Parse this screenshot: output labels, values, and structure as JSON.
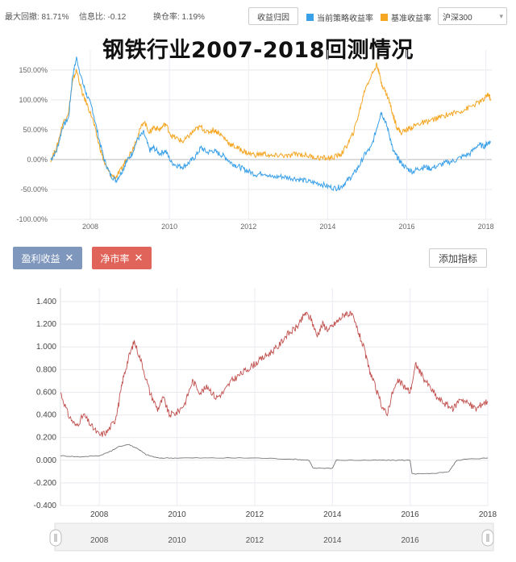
{
  "header": {
    "max_drawdown": "最大回撤: 81.71%",
    "info_ratio": "信息比: -0.12",
    "turnover": "换仓率: 1.19%",
    "attribution_button": "收益归因",
    "legend_strategy": "当前策略收益率",
    "legend_benchmark": "基准收益率",
    "benchmark_select": "沪深300",
    "colors": {
      "strategy": "#3aa0e8",
      "benchmark": "#f5a623",
      "pb_line": "#c0504d",
      "profit_line": "#777777"
    }
  },
  "title": "钢铁行业2007-2018回测情况",
  "controls": {
    "tag_profit": "盈利收益",
    "tag_pb": "净市率",
    "tag_close": "✕",
    "add_indicator": "添加指标",
    "tag_profit_color": "#7f97bd",
    "tag_pb_color": "#e0645a"
  },
  "chart_data": [
    {
      "type": "line",
      "x_ticks": [
        "2008",
        "2010",
        "2012",
        "2014",
        "2016",
        "2018"
      ],
      "y_ticks": [
        "150.00%",
        "100.00%",
        "50.00%",
        "0.00%",
        "-50.00%",
        "-100.00%"
      ],
      "xlim": [
        2007.0,
        2018.15
      ],
      "ylim": [
        -100,
        170
      ],
      "grid": true,
      "series": [
        {
          "name": "当前策略收益率",
          "x": [
            2007.0,
            2007.15,
            2007.3,
            2007.45,
            2007.55,
            2007.65,
            2007.8,
            2007.9,
            2008.05,
            2008.2,
            2008.35,
            2008.5,
            2008.65,
            2008.8,
            2008.9,
            2009.05,
            2009.2,
            2009.35,
            2009.5,
            2009.6,
            2009.75,
            2009.9,
            2010.05,
            2010.2,
            2010.35,
            2010.5,
            2010.65,
            2010.8,
            2010.95,
            2011.1,
            2011.25,
            2011.4,
            2011.55,
            2011.7,
            2011.85,
            2012.0,
            2012.2,
            2012.4,
            2012.6,
            2012.8,
            2013.0,
            2013.2,
            2013.4,
            2013.6,
            2013.8,
            2014.0,
            2014.2,
            2014.35,
            2014.5,
            2014.65,
            2014.8,
            2014.95,
            2015.1,
            2015.25,
            2015.35,
            2015.45,
            2015.55,
            2015.65,
            2015.75,
            2015.85,
            2016.0,
            2016.15,
            2016.3,
            2016.45,
            2016.6,
            2016.8,
            2017.0,
            2017.2,
            2017.4,
            2017.6,
            2017.8,
            2017.95,
            2018.05,
            2018.12
          ],
          "values": [
            0,
            15,
            55,
            70,
            140,
            170,
            130,
            110,
            85,
            40,
            0,
            -25,
            -35,
            -20,
            -5,
            10,
            35,
            45,
            15,
            20,
            10,
            15,
            -5,
            -10,
            -12,
            -5,
            5,
            20,
            12,
            15,
            10,
            5,
            -5,
            -10,
            -15,
            -20,
            -25,
            -22,
            -30,
            -28,
            -30,
            -32,
            -35,
            -38,
            -40,
            -45,
            -48,
            -45,
            -35,
            -25,
            -10,
            10,
            20,
            55,
            80,
            65,
            45,
            15,
            5,
            -5,
            -15,
            -20,
            -15,
            -12,
            -15,
            -10,
            -5,
            -2,
            5,
            10,
            25,
            22,
            28,
            30
          ]
        },
        {
          "name": "基准收益率",
          "x": [
            2007.0,
            2007.15,
            2007.3,
            2007.45,
            2007.55,
            2007.65,
            2007.8,
            2007.9,
            2008.05,
            2008.2,
            2008.35,
            2008.5,
            2008.65,
            2008.8,
            2008.9,
            2009.05,
            2009.2,
            2009.35,
            2009.5,
            2009.6,
            2009.75,
            2009.9,
            2010.05,
            2010.2,
            2010.35,
            2010.5,
            2010.65,
            2010.8,
            2010.95,
            2011.1,
            2011.25,
            2011.4,
            2011.55,
            2011.7,
            2011.85,
            2012.0,
            2012.2,
            2012.4,
            2012.6,
            2012.8,
            2013.0,
            2013.2,
            2013.4,
            2013.6,
            2013.8,
            2014.0,
            2014.2,
            2014.35,
            2014.5,
            2014.65,
            2014.8,
            2014.95,
            2015.1,
            2015.25,
            2015.35,
            2015.45,
            2015.55,
            2015.65,
            2015.75,
            2015.85,
            2016.0,
            2016.15,
            2016.3,
            2016.45,
            2016.6,
            2016.8,
            2017.0,
            2017.2,
            2017.4,
            2017.6,
            2017.8,
            2017.95,
            2018.05,
            2018.12
          ],
          "values": [
            0,
            20,
            60,
            80,
            130,
            150,
            110,
            95,
            70,
            30,
            -5,
            -25,
            -30,
            -15,
            0,
            15,
            40,
            65,
            45,
            55,
            50,
            60,
            40,
            35,
            30,
            40,
            50,
            55,
            45,
            50,
            45,
            35,
            25,
            20,
            15,
            10,
            8,
            10,
            5,
            8,
            5,
            10,
            8,
            5,
            3,
            2,
            5,
            10,
            25,
            45,
            80,
            120,
            140,
            160,
            130,
            115,
            100,
            75,
            55,
            45,
            50,
            55,
            60,
            62,
            65,
            70,
            75,
            78,
            82,
            88,
            95,
            100,
            110,
            102
          ]
        }
      ]
    },
    {
      "type": "line",
      "x_ticks": [
        "2008",
        "2010",
        "2012",
        "2014",
        "2016",
        "2018"
      ],
      "y_ticks": [
        "1.400",
        "1.200",
        "1.000",
        "0.800",
        "0.600",
        "0.400",
        "0.200",
        "0.000",
        "-0.200",
        "-0.400"
      ],
      "xlim": [
        2007.0,
        2018.0
      ],
      "ylim": [
        -0.4,
        1.45
      ],
      "grid": true,
      "series": [
        {
          "name": "净市率",
          "x": [
            2007.0,
            2007.2,
            2007.4,
            2007.6,
            2007.8,
            2008.0,
            2008.2,
            2008.4,
            2008.5,
            2008.6,
            2008.75,
            2008.9,
            2009.1,
            2009.3,
            2009.5,
            2009.65,
            2009.8,
            2010.0,
            2010.2,
            2010.4,
            2010.6,
            2010.8,
            2011.0,
            2011.2,
            2011.4,
            2011.6,
            2011.8,
            2012.0,
            2012.2,
            2012.4,
            2012.6,
            2012.8,
            2013.0,
            2013.15,
            2013.3,
            2013.45,
            2013.6,
            2013.75,
            2013.9,
            2014.05,
            2014.2,
            2014.35,
            2014.5,
            2014.65,
            2014.8,
            2014.95,
            2015.1,
            2015.25,
            2015.4,
            2015.55,
            2015.7,
            2015.85,
            2016.0,
            2016.15,
            2016.3,
            2016.5,
            2016.7,
            2016.9,
            2017.1,
            2017.3,
            2017.5,
            2017.7,
            2017.85,
            2018.0
          ],
          "values": [
            0.6,
            0.4,
            0.3,
            0.4,
            0.3,
            0.22,
            0.25,
            0.35,
            0.5,
            0.7,
            0.9,
            1.05,
            0.85,
            0.6,
            0.45,
            0.55,
            0.4,
            0.42,
            0.5,
            0.7,
            0.6,
            0.65,
            0.55,
            0.6,
            0.7,
            0.75,
            0.8,
            0.85,
            0.9,
            0.95,
            1.0,
            1.1,
            1.15,
            1.2,
            1.3,
            1.25,
            1.1,
            1.2,
            1.15,
            1.2,
            1.25,
            1.3,
            1.28,
            1.15,
            1.0,
            0.8,
            0.65,
            0.5,
            0.4,
            0.6,
            0.7,
            0.65,
            0.6,
            0.85,
            0.75,
            0.65,
            0.55,
            0.5,
            0.45,
            0.55,
            0.5,
            0.45,
            0.5,
            0.52
          ]
        },
        {
          "name": "盈利收益",
          "x": [
            2007.0,
            2007.5,
            2008.0,
            2008.3,
            2008.5,
            2008.75,
            2009.0,
            2009.2,
            2009.5,
            2010.0,
            2011.0,
            2012.0,
            2013.0,
            2013.4,
            2013.5,
            2014.0,
            2014.1,
            2015.0,
            2015.5,
            2016.0,
            2016.05,
            2016.5,
            2017.0,
            2017.2,
            2017.5,
            2018.0
          ],
          "values": [
            0.04,
            0.03,
            0.04,
            0.08,
            0.12,
            0.14,
            0.1,
            0.05,
            0.02,
            0.02,
            0.02,
            0.02,
            0.01,
            0.0,
            -0.07,
            -0.07,
            0.0,
            0.0,
            0.0,
            0.0,
            -0.12,
            -0.12,
            -0.1,
            0.0,
            0.01,
            0.02
          ]
        }
      ]
    }
  ],
  "navigator": {
    "labels": [
      "2008",
      "2010",
      "2012",
      "2014",
      "2016"
    ]
  }
}
